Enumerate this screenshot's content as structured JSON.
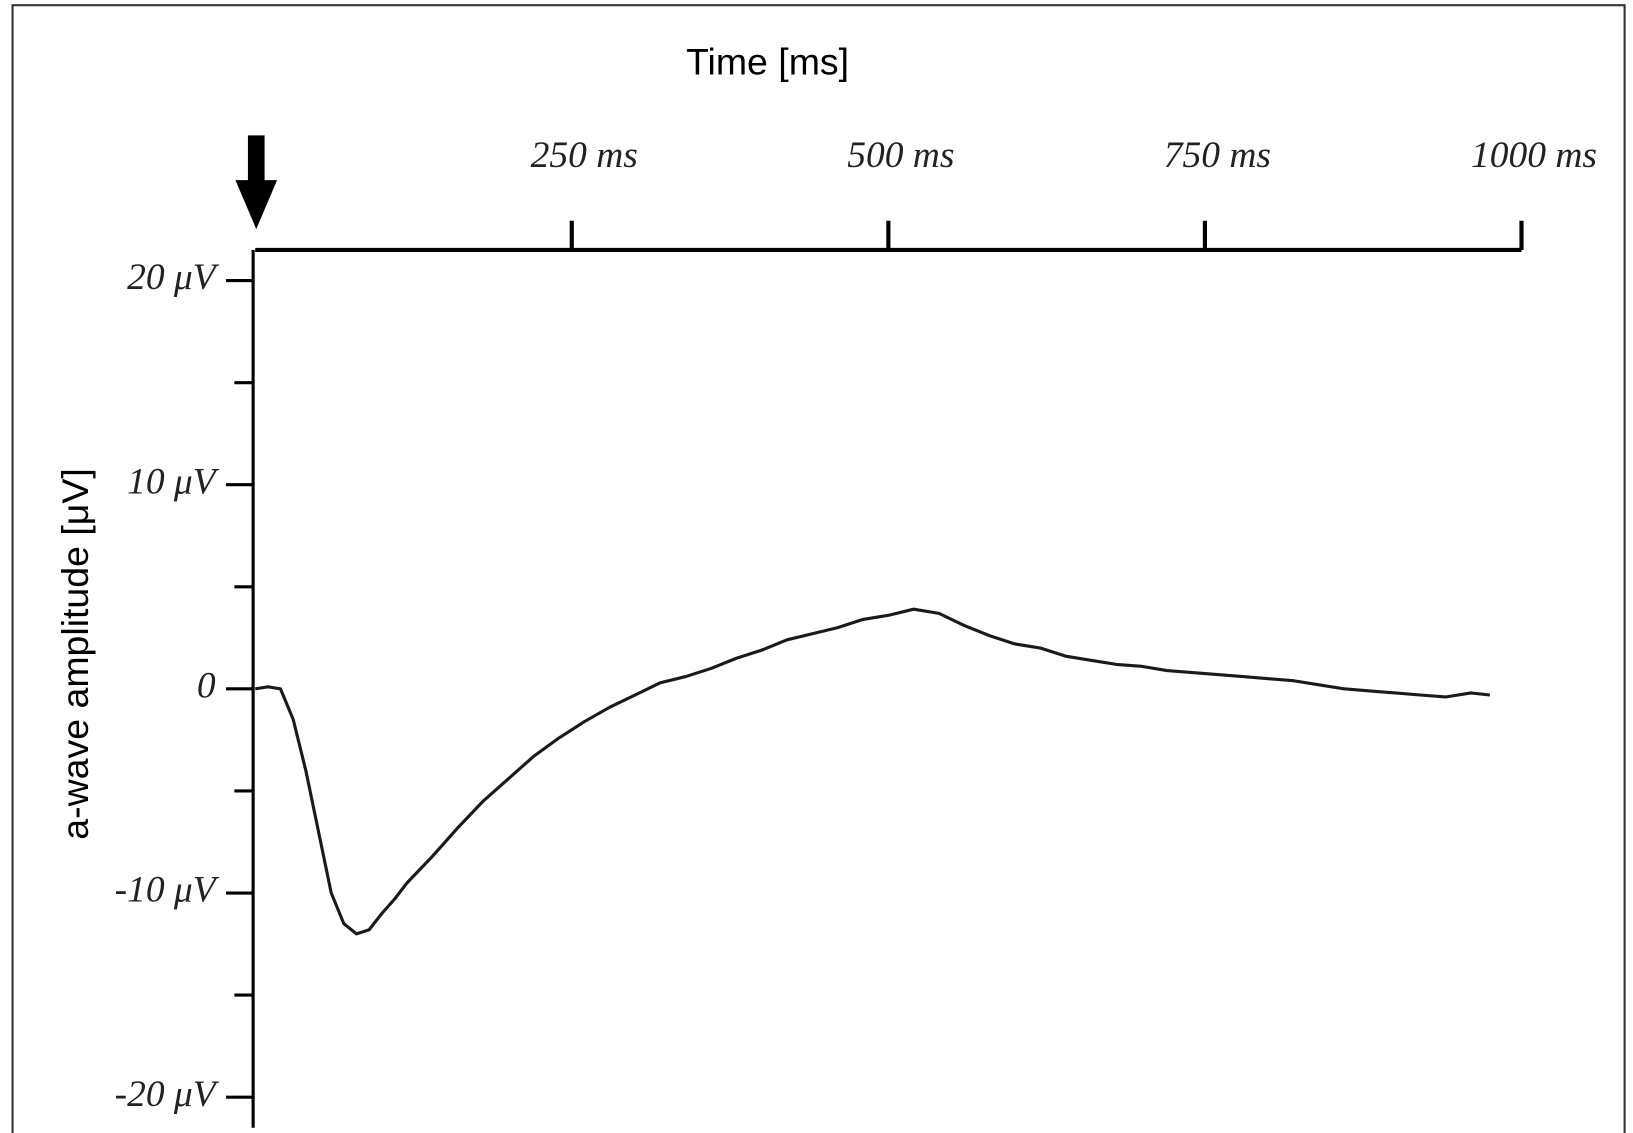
{
  "chart_data": {
    "type": "line",
    "title": "Time [ms]",
    "y_label": "a-wave amplitude [μV]",
    "xlim": [
      0,
      1000
    ],
    "xticks": [
      {
        "value": 250,
        "label": "250 ms"
      },
      {
        "value": 500,
        "label": "500 ms"
      },
      {
        "value": 750,
        "label": "750 ms"
      },
      {
        "value": 1000,
        "label": "1000 ms"
      }
    ],
    "ylim": [
      -21.5,
      21.5
    ],
    "yticks": [
      {
        "value": 20,
        "label": "20 μV"
      },
      {
        "value": 10,
        "label": "10 μV"
      },
      0,
      {
        "value": -10,
        "label": "-10 μV"
      },
      {
        "value": -20,
        "label": "-20 μV"
      }
    ],
    "yticks_minor": [
      15,
      5,
      -5,
      -15
    ],
    "grid": false,
    "x": [
      0,
      10,
      20,
      30,
      40,
      50,
      60,
      70,
      80,
      90,
      100,
      110,
      120,
      140,
      160,
      180,
      200,
      220,
      240,
      260,
      280,
      300,
      320,
      340,
      360,
      380,
      400,
      420,
      440,
      460,
      480,
      500,
      520,
      540,
      560,
      580,
      600,
      620,
      640,
      660,
      680,
      700,
      720,
      740,
      760,
      780,
      800,
      820,
      840,
      860,
      880,
      900,
      920,
      940,
      960,
      975
    ],
    "series": [
      {
        "color": "#1a1a1a",
        "values": [
          0,
          0.1,
          0,
          -1.5,
          -4,
          -7,
          -10,
          -11.5,
          -12,
          -11.8,
          -11,
          -10.3,
          -9.5,
          -8.2,
          -6.8,
          -5.5,
          -4.4,
          -3.3,
          -2.4,
          -1.6,
          -0.9,
          -0.3,
          0.3,
          0.6,
          1.0,
          1.5,
          1.9,
          2.4,
          2.7,
          3.0,
          3.4,
          3.6,
          3.9,
          3.7,
          3.1,
          2.6,
          2.2,
          2.0,
          1.6,
          1.4,
          1.2,
          1.1,
          0.9,
          0.8,
          0.7,
          0.6,
          0.5,
          0.4,
          0.2,
          0,
          -0.1,
          -0.2,
          -0.3,
          -0.4,
          -0.2,
          -0.3
        ]
      }
    ]
  }
}
